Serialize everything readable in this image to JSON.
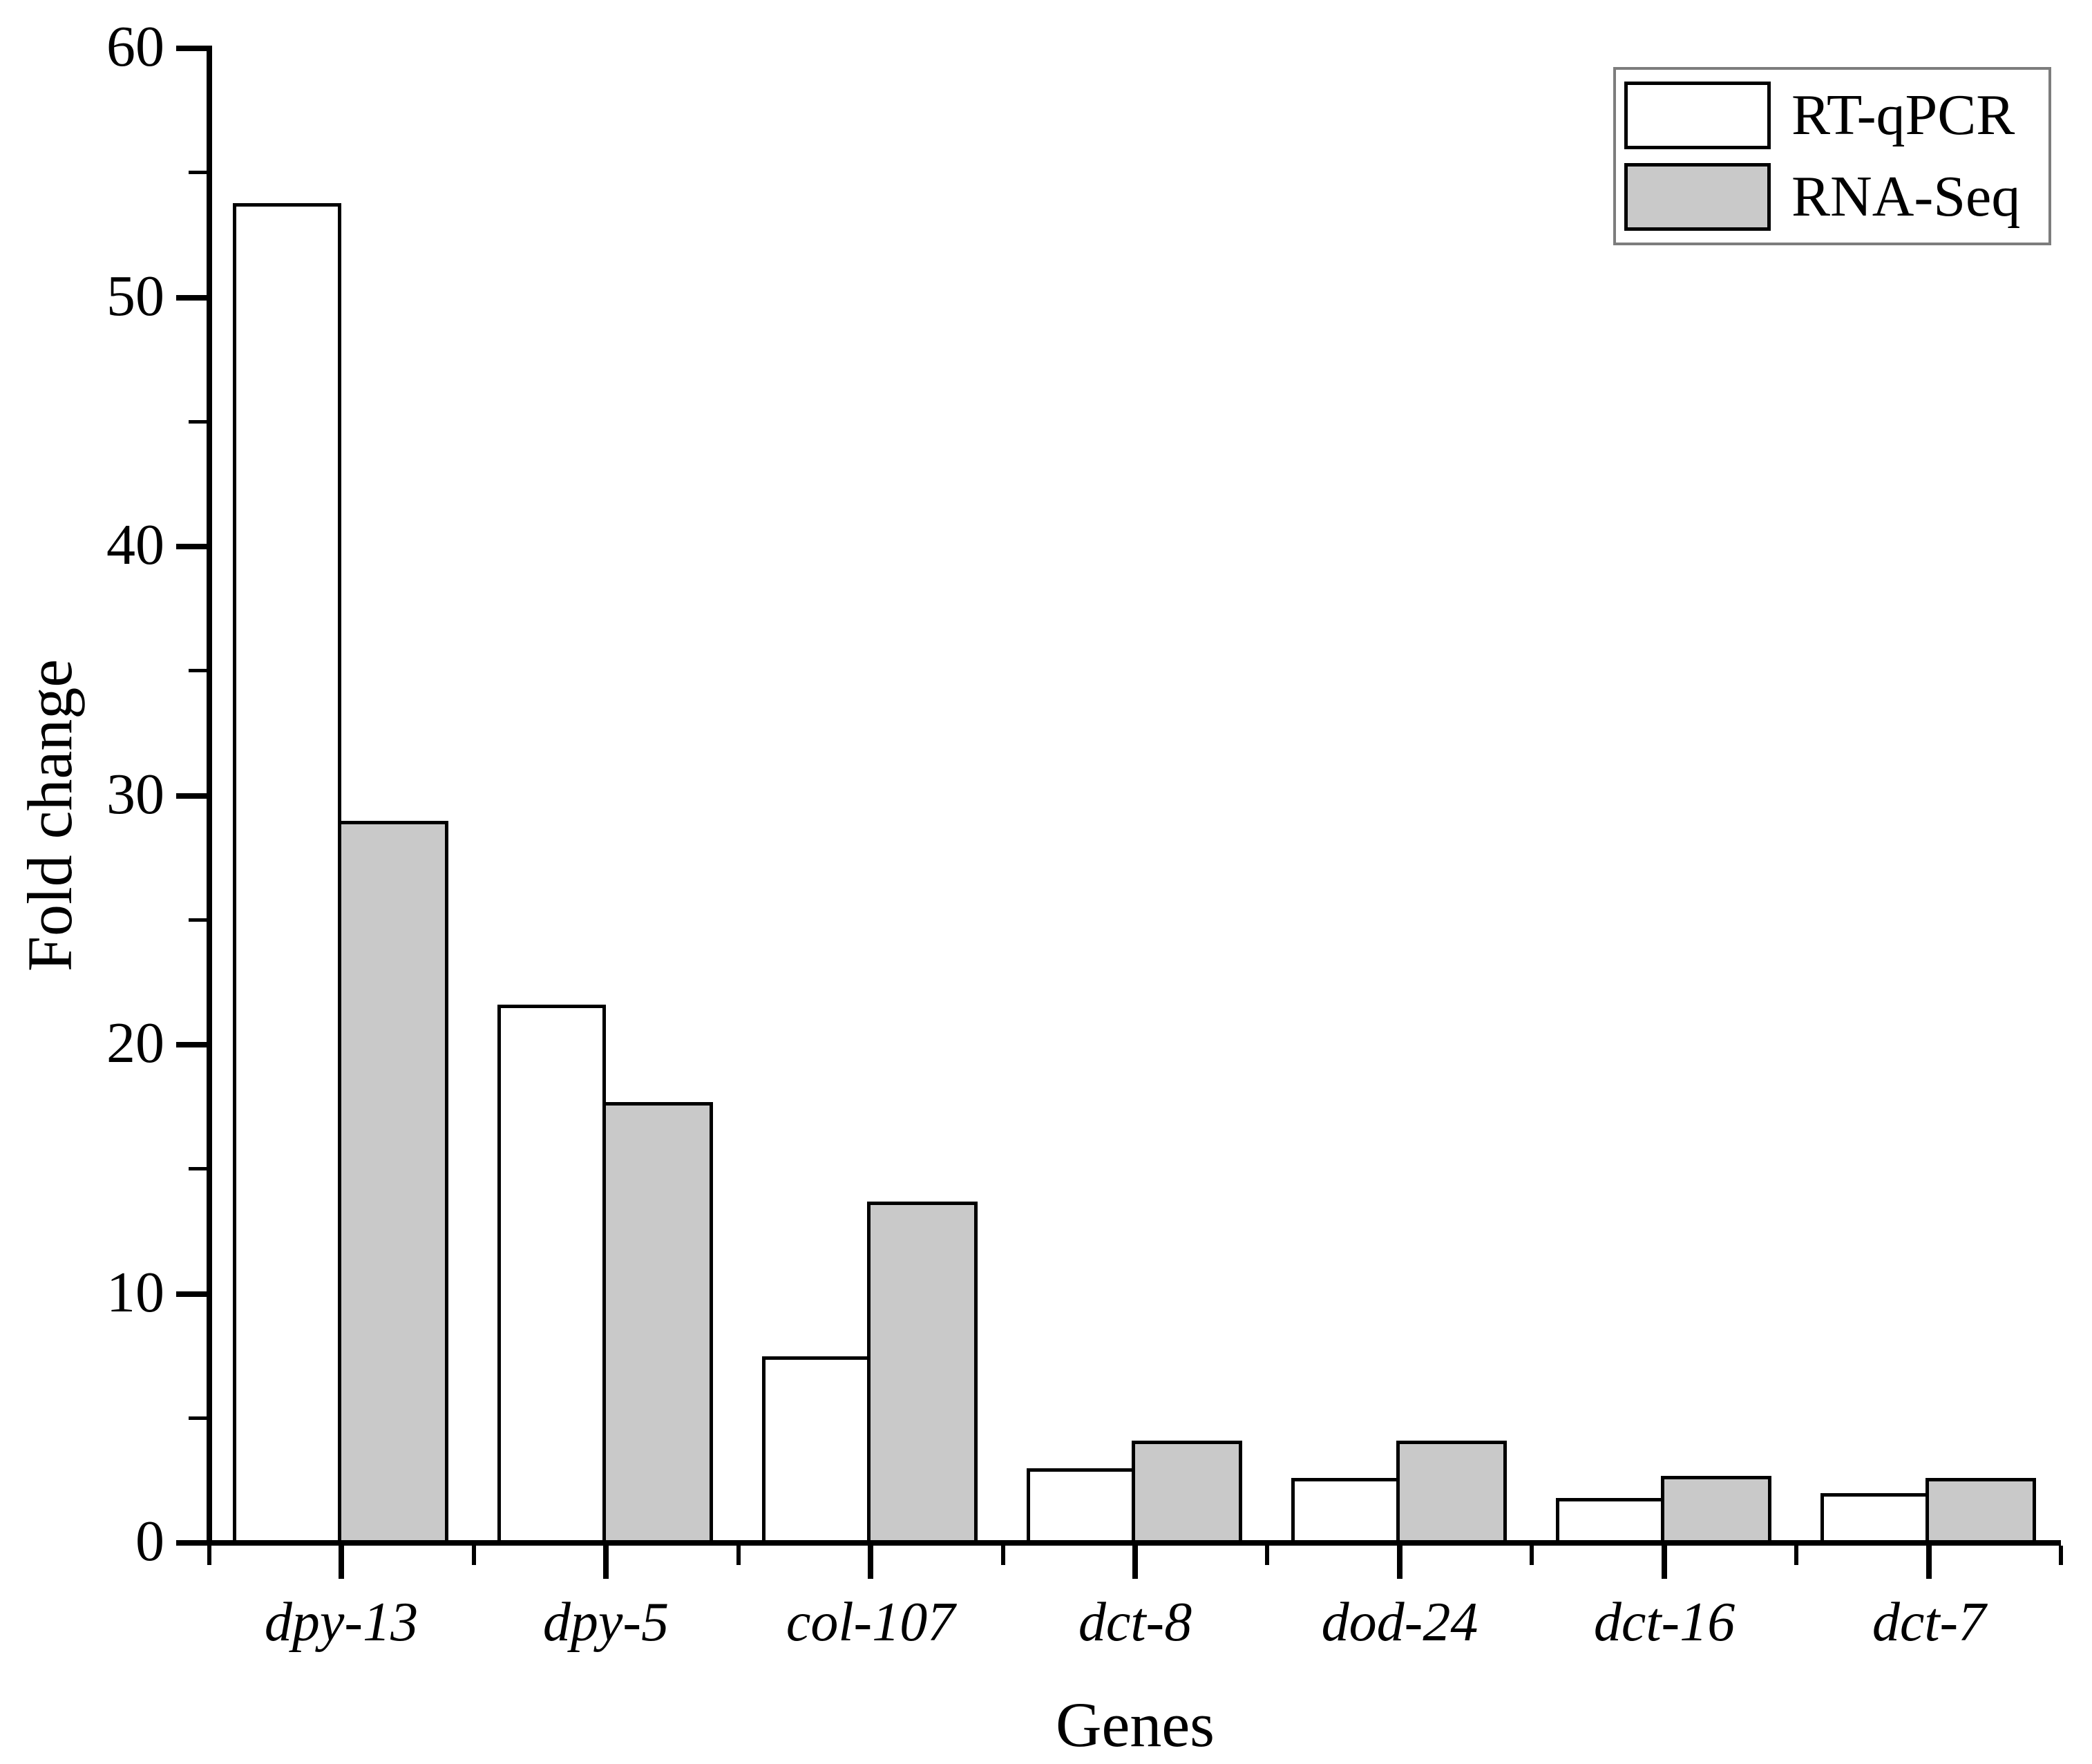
{
  "chart_data": {
    "type": "bar",
    "title": "",
    "xlabel": "Genes",
    "ylabel": "Fold change",
    "categories": [
      "dpy-13",
      "dpy-5",
      "col-107",
      "dct-8",
      "dod-24",
      "dct-16",
      "dct-7"
    ],
    "series": [
      {
        "name": "RT-qPCR",
        "fill": "#ffffff",
        "values": [
          53.8,
          21.6,
          7.5,
          3.0,
          2.6,
          1.8,
          2.0
        ]
      },
      {
        "name": "RNA-Seq",
        "fill": "#c9c9c9",
        "values": [
          29.0,
          17.7,
          13.7,
          4.1,
          4.1,
          2.7,
          2.6
        ]
      }
    ],
    "ylim": [
      0,
      60
    ],
    "yticks_major": [
      0,
      10,
      20,
      30,
      40,
      50,
      60
    ],
    "yticks_minor": [
      5,
      15,
      25,
      35,
      45,
      55
    ],
    "grid": false,
    "legend_position": "top-right",
    "bar_outline_color": "#000000",
    "axis_color": "#000000"
  }
}
